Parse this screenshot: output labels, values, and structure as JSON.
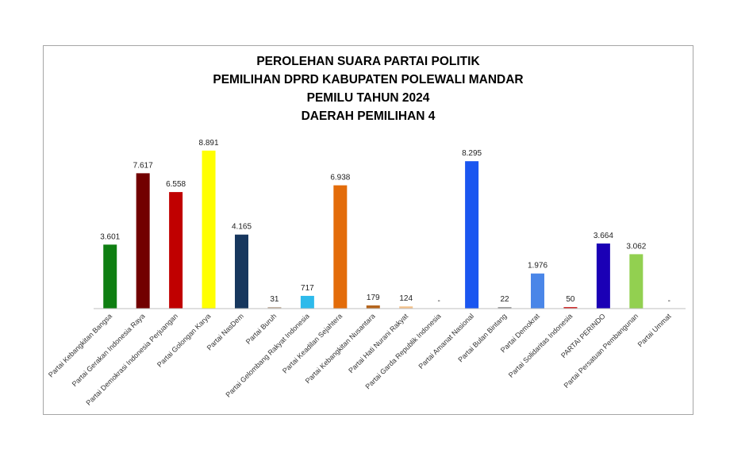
{
  "chart_data": {
    "type": "bar",
    "title": [
      "PEROLEHAN SUARA PARTAI POLITIK",
      "PEMILIHAN DPRD KABUPATEN POLEWALI MANDAR",
      "PEMILU TAHUN 2024",
      "DAERAH PEMILIHAN 4"
    ],
    "categories": [
      "Partai Kebangkitan Bangsa",
      "Partai Gerakan Indonesia Raya",
      "Partai Demokrasi Indonesia Perjuangan",
      "Partai Golongan Karya",
      "Partai NasDem",
      "Partai Buruh",
      "Partai Gelombang Rakyat Indonesia",
      "Partai Keadilan Sejahtera",
      "Partai Kebangkitan Nusantara",
      "Partai Hati Nurani Rakyat",
      "Partai Garda Republik Indonesia",
      "Partai Amanat Nasional",
      "Partai Bulan Bintang",
      "Partai Demokrat",
      "Partai Solidaritas Indonesia",
      "PARTAI PERINDO",
      "Partai Persatuan Pembangunan",
      "Partai Ummat"
    ],
    "values": [
      3601,
      7617,
      6558,
      8891,
      4165,
      31,
      717,
      6938,
      179,
      124,
      0,
      8295,
      22,
      1976,
      50,
      3664,
      3062,
      0
    ],
    "data_labels": [
      "3.601",
      "7.617",
      "6.558",
      "8.891",
      "4.165",
      "31",
      "717",
      "6.938",
      "179",
      "124",
      "-",
      "8.295",
      "22",
      "1.976",
      "50",
      "3.664",
      "3.062",
      "-"
    ],
    "colors": [
      "#0f7f12",
      "#720000",
      "#c00000",
      "#ffff00",
      "#17375e",
      "#c4b5a5",
      "#2ebaeb",
      "#e36c0a",
      "#b5651d",
      "#f4c28c",
      "#ffffff",
      "#1a56f0",
      "#a0a0a0",
      "#4a86e8",
      "#d03030",
      "#1a00b5",
      "#92d050",
      "#ffffff"
    ],
    "ylim": [
      0,
      10000
    ],
    "grid": false,
    "legend": "none",
    "xlabel": "",
    "ylabel": ""
  }
}
